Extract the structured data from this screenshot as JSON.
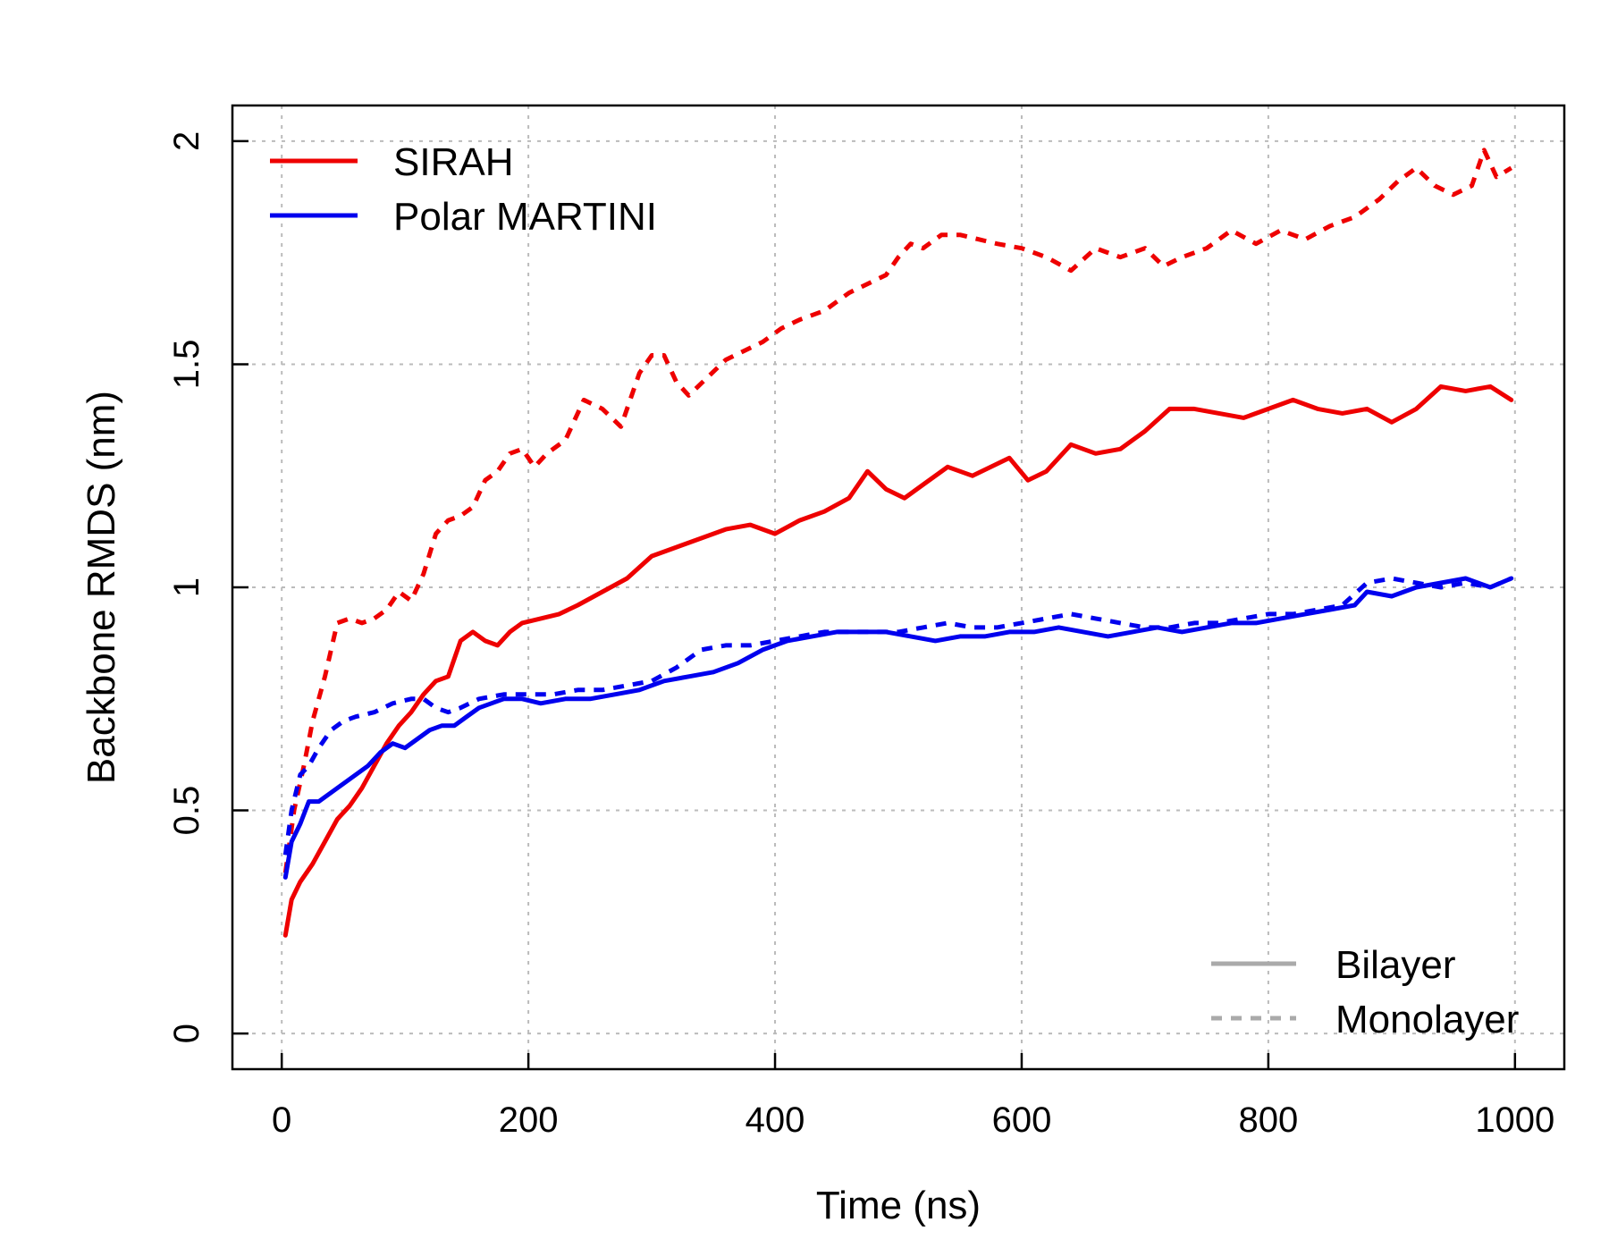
{
  "chart_data": {
    "type": "line",
    "title": "",
    "xlabel": "Time (ns)",
    "ylabel": "Backbone RMDS (nm)",
    "xlim": [
      -40,
      1040
    ],
    "ylim": [
      -0.08,
      2.08
    ],
    "xticks": [
      0,
      200,
      400,
      600,
      800,
      1000
    ],
    "yticks": [
      0,
      0.5,
      1,
      1.5,
      2
    ],
    "xtick_labels": [
      "0",
      "200",
      "400",
      "600",
      "800",
      "1000"
    ],
    "ytick_labels": [
      "0",
      "0.5",
      "1",
      "1.5",
      "2"
    ],
    "grid": true,
    "colors": {
      "sirah": "#ee0000",
      "martini": "#0000ee",
      "style_legend": "#aaaaaa",
      "grid": "#bbbbbb"
    },
    "legend": {
      "placement": "top-left",
      "entries": [
        "SIRAH",
        "Polar MARTINI"
      ]
    },
    "style_legend": {
      "placement": "bottom-right",
      "entries": [
        "Bilayer",
        "Monolayer"
      ]
    },
    "series": [
      {
        "name": "SIRAH",
        "key": "sirah_bilayer",
        "color": "#ee0000",
        "dash": false,
        "x": [
          3,
          8,
          15,
          25,
          35,
          45,
          55,
          65,
          75,
          85,
          95,
          105,
          115,
          125,
          135,
          145,
          155,
          165,
          175,
          185,
          195,
          210,
          225,
          240,
          260,
          280,
          300,
          320,
          340,
          360,
          380,
          400,
          420,
          440,
          460,
          475,
          490,
          505,
          520,
          540,
          560,
          575,
          590,
          605,
          620,
          640,
          660,
          680,
          700,
          720,
          740,
          760,
          780,
          800,
          820,
          840,
          860,
          880,
          900,
          920,
          940,
          960,
          980,
          997
        ],
        "y": [
          0.22,
          0.3,
          0.34,
          0.38,
          0.43,
          0.48,
          0.51,
          0.55,
          0.6,
          0.65,
          0.69,
          0.72,
          0.76,
          0.79,
          0.8,
          0.88,
          0.9,
          0.88,
          0.87,
          0.9,
          0.92,
          0.93,
          0.94,
          0.96,
          0.99,
          1.02,
          1.07,
          1.09,
          1.11,
          1.13,
          1.14,
          1.12,
          1.15,
          1.17,
          1.2,
          1.26,
          1.22,
          1.2,
          1.23,
          1.27,
          1.25,
          1.27,
          1.29,
          1.24,
          1.26,
          1.32,
          1.3,
          1.31,
          1.35,
          1.4,
          1.4,
          1.39,
          1.38,
          1.4,
          1.42,
          1.4,
          1.39,
          1.4,
          1.37,
          1.4,
          1.45,
          1.44,
          1.45,
          1.42
        ]
      },
      {
        "name": "SIRAH",
        "key": "sirah_monolayer",
        "color": "#ee0000",
        "dash": true,
        "x": [
          3,
          10,
          18,
          25,
          35,
          45,
          55,
          65,
          75,
          85,
          95,
          105,
          115,
          125,
          135,
          145,
          155,
          165,
          175,
          185,
          195,
          205,
          215,
          230,
          245,
          260,
          275,
          290,
          300,
          310,
          320,
          330,
          345,
          360,
          375,
          390,
          405,
          420,
          440,
          460,
          475,
          490,
          500,
          510,
          520,
          535,
          550,
          565,
          580,
          600,
          620,
          640,
          660,
          680,
          700,
          715,
          730,
          750,
          770,
          790,
          810,
          830,
          850,
          870,
          890,
          905,
          920,
          935,
          950,
          965,
          975,
          985,
          997
        ],
        "y": [
          0.36,
          0.5,
          0.6,
          0.7,
          0.8,
          0.92,
          0.93,
          0.92,
          0.93,
          0.95,
          0.99,
          0.97,
          1.03,
          1.12,
          1.15,
          1.16,
          1.18,
          1.24,
          1.26,
          1.3,
          1.31,
          1.27,
          1.3,
          1.33,
          1.42,
          1.4,
          1.36,
          1.48,
          1.52,
          1.52,
          1.46,
          1.43,
          1.47,
          1.51,
          1.53,
          1.55,
          1.58,
          1.6,
          1.62,
          1.66,
          1.68,
          1.7,
          1.74,
          1.77,
          1.76,
          1.79,
          1.79,
          1.78,
          1.77,
          1.76,
          1.74,
          1.71,
          1.76,
          1.74,
          1.76,
          1.72,
          1.74,
          1.76,
          1.8,
          1.77,
          1.8,
          1.78,
          1.81,
          1.83,
          1.87,
          1.91,
          1.94,
          1.9,
          1.88,
          1.9,
          1.98,
          1.92,
          1.94
        ]
      },
      {
        "name": "Polar MARTINI",
        "key": "martini_bilayer",
        "color": "#0000ee",
        "dash": false,
        "x": [
          3,
          8,
          15,
          22,
          30,
          40,
          50,
          60,
          70,
          80,
          90,
          100,
          110,
          120,
          130,
          140,
          150,
          160,
          170,
          180,
          195,
          210,
          230,
          250,
          270,
          290,
          310,
          330,
          350,
          370,
          390,
          410,
          430,
          450,
          470,
          490,
          510,
          530,
          550,
          570,
          590,
          610,
          630,
          650,
          670,
          690,
          710,
          730,
          750,
          770,
          790,
          810,
          830,
          850,
          870,
          880,
          900,
          920,
          940,
          960,
          980,
          997
        ],
        "y": [
          0.35,
          0.43,
          0.47,
          0.52,
          0.52,
          0.54,
          0.56,
          0.58,
          0.6,
          0.63,
          0.65,
          0.64,
          0.66,
          0.68,
          0.69,
          0.69,
          0.71,
          0.73,
          0.74,
          0.75,
          0.75,
          0.74,
          0.75,
          0.75,
          0.76,
          0.77,
          0.79,
          0.8,
          0.81,
          0.83,
          0.86,
          0.88,
          0.89,
          0.9,
          0.9,
          0.9,
          0.89,
          0.88,
          0.89,
          0.89,
          0.9,
          0.9,
          0.91,
          0.9,
          0.89,
          0.9,
          0.91,
          0.9,
          0.91,
          0.92,
          0.92,
          0.93,
          0.94,
          0.95,
          0.96,
          0.99,
          0.98,
          1.0,
          1.01,
          1.02,
          1.0,
          1.02
        ]
      },
      {
        "name": "Polar MARTINI",
        "key": "martini_monolayer",
        "color": "#0000ee",
        "dash": true,
        "x": [
          3,
          8,
          15,
          22,
          30,
          40,
          50,
          60,
          75,
          90,
          105,
          115,
          125,
          135,
          145,
          160,
          180,
          200,
          220,
          240,
          260,
          280,
          300,
          320,
          340,
          360,
          380,
          400,
          420,
          440,
          460,
          480,
          500,
          520,
          540,
          560,
          580,
          600,
          620,
          640,
          660,
          680,
          700,
          720,
          740,
          760,
          780,
          800,
          820,
          840,
          860,
          880,
          900,
          920,
          940,
          960,
          980,
          997
        ],
        "y": [
          0.4,
          0.5,
          0.58,
          0.6,
          0.64,
          0.68,
          0.7,
          0.71,
          0.72,
          0.74,
          0.75,
          0.75,
          0.73,
          0.72,
          0.73,
          0.75,
          0.76,
          0.76,
          0.76,
          0.77,
          0.77,
          0.78,
          0.79,
          0.82,
          0.86,
          0.87,
          0.87,
          0.88,
          0.89,
          0.9,
          0.9,
          0.9,
          0.9,
          0.91,
          0.92,
          0.91,
          0.91,
          0.92,
          0.93,
          0.94,
          0.93,
          0.92,
          0.91,
          0.91,
          0.92,
          0.92,
          0.93,
          0.94,
          0.94,
          0.95,
          0.96,
          1.01,
          1.02,
          1.01,
          1.0,
          1.01,
          1.0,
          1.02
        ]
      }
    ]
  }
}
